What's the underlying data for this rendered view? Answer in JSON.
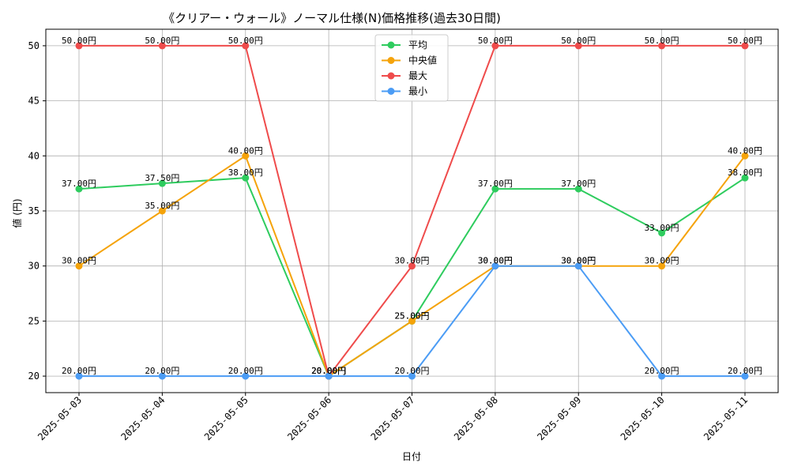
{
  "chart_data": {
    "type": "line",
    "title": "《クリアー・ウォール》ノーマル仕様(N)価格推移(過去30日間)",
    "xlabel": "日付",
    "ylabel": "値 (円)",
    "categories": [
      "2025-05-03",
      "2025-05-04",
      "2025-05-05",
      "2025-05-06",
      "2025-05-07",
      "2025-05-08",
      "2025-05-09",
      "2025-05-10",
      "2025-05-11"
    ],
    "ylim": [
      18.5,
      51.5
    ],
    "yticks": [
      20,
      25,
      30,
      35,
      40,
      45,
      50
    ],
    "grid": true,
    "legend_position": "top-center",
    "label_suffix": "円",
    "series": [
      {
        "name": "平均",
        "color": "#2ecc5e",
        "values": [
          37.0,
          37.5,
          38.0,
          20.0,
          25.0,
          37.0,
          37.0,
          33.0,
          38.0
        ]
      },
      {
        "name": "中央値",
        "color": "#f5a30a",
        "values": [
          30.0,
          35.0,
          40.0,
          20.0,
          25.0,
          30.0,
          30.0,
          30.0,
          40.0
        ]
      },
      {
        "name": "最大",
        "color": "#ef4b4b",
        "values": [
          50.0,
          50.0,
          50.0,
          20.0,
          30.0,
          50.0,
          50.0,
          50.0,
          50.0
        ]
      },
      {
        "name": "最小",
        "color": "#4b9cf5",
        "values": [
          20.0,
          20.0,
          20.0,
          20.0,
          20.0,
          30.0,
          30.0,
          20.0,
          20.0
        ]
      }
    ]
  }
}
